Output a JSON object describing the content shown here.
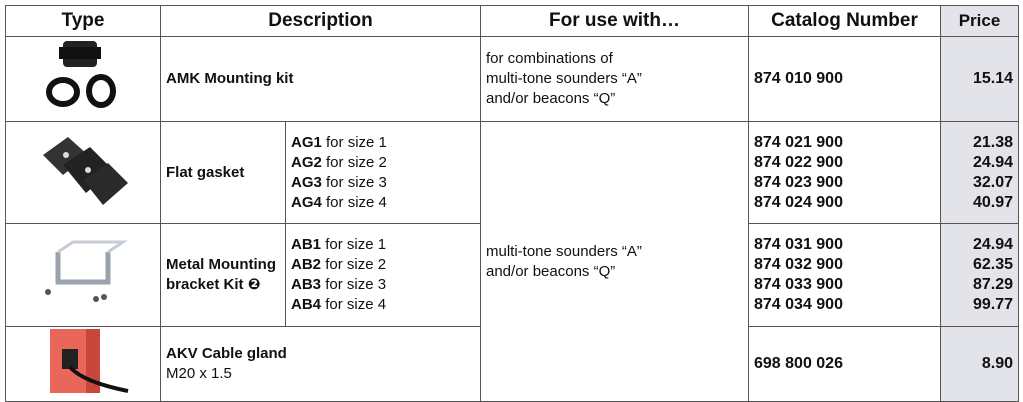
{
  "header": {
    "type": "Type",
    "description": "Description",
    "use": "For use with…",
    "catalog": "Catalog Number",
    "price": "Price"
  },
  "rows": [
    {
      "description": "AMK Mounting kit",
      "use": [
        "for combinations of",
        "multi-tone sounders “A”",
        "and/or beacons “Q”"
      ],
      "catalog": [
        "874 010 900"
      ],
      "price": [
        "15.14"
      ]
    },
    {
      "description": "Flat gasket",
      "sizes": [
        {
          "code": "AG1",
          "text": "for size 1"
        },
        {
          "code": "AG2",
          "text": "for size 2"
        },
        {
          "code": "AG3",
          "text": "for size 3"
        },
        {
          "code": "AG4",
          "text": "for size 4"
        }
      ],
      "catalog": [
        "874 021 900",
        "874 022 900",
        "874 023 900",
        "874 024 900"
      ],
      "price": [
        "21.38",
        "24.94",
        "32.07",
        "40.97"
      ]
    },
    {
      "description": "Metal Mounting bracket Kit ❷",
      "sizes": [
        {
          "code": "AB1",
          "text": "for size 1"
        },
        {
          "code": "AB2",
          "text": "for size 2"
        },
        {
          "code": "AB3",
          "text": "for size 3"
        },
        {
          "code": "AB4",
          "text": "for size 4"
        }
      ],
      "catalog": [
        "874 031 900",
        "874 032 900",
        "874 033 900",
        "874 034 900"
      ],
      "price": [
        "24.94",
        "62.35",
        "87.29",
        "99.77"
      ]
    },
    {
      "description": "AKV Cable gland",
      "detail": "M20 x 1.5",
      "catalog": [
        "698 800 026"
      ],
      "price": [
        "8.90"
      ]
    }
  ],
  "shared_use": [
    "multi-tone sounders “A”",
    "and/or beacons “Q”"
  ]
}
